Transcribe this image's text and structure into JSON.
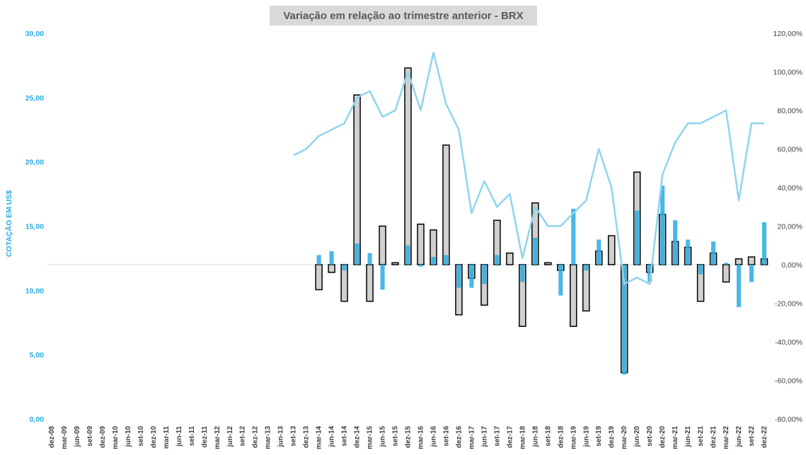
{
  "chart_data": {
    "type": "bar",
    "title": "Variação em relação ao trimestre anterior - BRX",
    "ylabel_left": "COTAÇÃO EM US$",
    "ylabel_right": "",
    "left_axis": {
      "ylim": [
        0,
        30
      ],
      "ticks": [
        "0,00",
        "5,00",
        "10,00",
        "15,00",
        "20,00",
        "25,00",
        "30,00"
      ]
    },
    "right_axis": {
      "ylim": [
        -80,
        120
      ],
      "ticks": [
        "-80,00%",
        "-60,00%",
        "-40,00%",
        "-20,00%",
        "0,00%",
        "20,00%",
        "40,00%",
        "60,00%",
        "80,00%",
        "100,00%",
        "120,00%"
      ]
    },
    "categories": [
      "dez-08",
      "mar-09",
      "jun-09",
      "set-09",
      "dez-09",
      "mar-10",
      "jun-10",
      "set-10",
      "dez-10",
      "mar-11",
      "jun-11",
      "set-11",
      "dez-11",
      "mar-12",
      "jun-12",
      "set-12",
      "dez-12",
      "mar-13",
      "jun-13",
      "set-13",
      "dez-13",
      "mar-14",
      "jun-14",
      "set-14",
      "dez-14",
      "mar-15",
      "jun-15",
      "set-15",
      "dez-15",
      "mar-16",
      "jun-16",
      "set-16",
      "dez-16",
      "mar-17",
      "jun-17",
      "set-17",
      "dez-17",
      "mar-18",
      "jun-18",
      "set-18",
      "dez-18",
      "mar-19",
      "jun-19",
      "set-19",
      "dez-19",
      "mar-20",
      "jun-20",
      "set-20",
      "dez-20",
      "mar-21",
      "jun-21",
      "set-21",
      "dez-21",
      "mar-22",
      "jun-22",
      "set-22",
      "dez-22"
    ],
    "series": [
      {
        "style": "outlined-bar",
        "color": "#d0d0d0",
        "values": [
          null,
          null,
          null,
          null,
          null,
          null,
          null,
          null,
          null,
          null,
          null,
          null,
          null,
          null,
          null,
          null,
          null,
          null,
          null,
          null,
          null,
          -13,
          -4,
          -19,
          88,
          -19,
          20,
          1,
          102,
          21,
          18,
          62,
          -26,
          -7,
          -21,
          23,
          6,
          -32,
          32,
          1,
          -3,
          -32,
          -24,
          7,
          15,
          -56,
          48,
          -4,
          26,
          12,
          9,
          -19,
          6,
          -9,
          3,
          4,
          3
        ]
      },
      {
        "style": "bar",
        "color": "#29abe2",
        "values": [
          null,
          null,
          null,
          null,
          null,
          null,
          null,
          null,
          null,
          null,
          null,
          null,
          null,
          null,
          null,
          null,
          null,
          null,
          null,
          null,
          null,
          5,
          7,
          -3,
          11,
          6,
          -13,
          null,
          10,
          -1,
          4,
          5,
          -12,
          -12,
          -10,
          5,
          null,
          -9,
          14,
          null,
          -16,
          29,
          -3,
          13,
          null,
          -57,
          28,
          -9,
          41,
          23,
          13,
          -5,
          12,
          1,
          -22,
          -9,
          22
        ]
      },
      {
        "style": "line",
        "color": "#8fd4ee",
        "axis": "left",
        "values": [
          null,
          null,
          null,
          null,
          null,
          null,
          null,
          null,
          null,
          null,
          null,
          null,
          null,
          null,
          null,
          null,
          null,
          null,
          null,
          20.5,
          21.0,
          22.0,
          22.5,
          23.0,
          25.0,
          25.5,
          23.5,
          24.0,
          27.0,
          24.0,
          28.5,
          24.5,
          22.5,
          16.0,
          18.5,
          16.5,
          17.5,
          12.5,
          16.5,
          15.0,
          15.0,
          16.0,
          17.0,
          21.0,
          18.0,
          10.5,
          11.0,
          10.5,
          19.0,
          21.5,
          23.0,
          23.0,
          23.5,
          24.0,
          17.0,
          23.0,
          23.0
        ]
      }
    ]
  }
}
